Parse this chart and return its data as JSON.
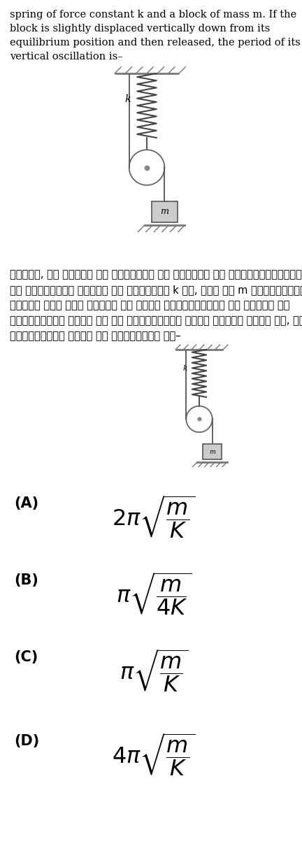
{
  "bg_color": "#ffffff",
  "text_color": "#000000",
  "title_english": "spring of force constant k and a block of mass m. If the\nblock is slightly displaced vertically down from its\nequilibrium position and then released, the period of its\nvertical oscillation is–",
  "title_hindi_lines": [
    "चित्र, एक निकाय को दर्शाता है जिसमें एक द्रव्यमानहीन घिरनी,",
    "एक स्प्रिंग जिसका बल नियतांक k है, तथा एक m द्रव्यमान का",
    "गुटका है। यदि गुटके को इसकी साम्यवस्था से थोड़ा सा",
    "ऊर्ध्वाधर नीचे की ओर विस्थापित करके छोड़ा जाता है, इसके",
    "ऊर्ध्वाधर दोलन का आवर्तकाल है–"
  ],
  "fig_w": 4.32,
  "fig_h": 12.1,
  "dpi": 100
}
